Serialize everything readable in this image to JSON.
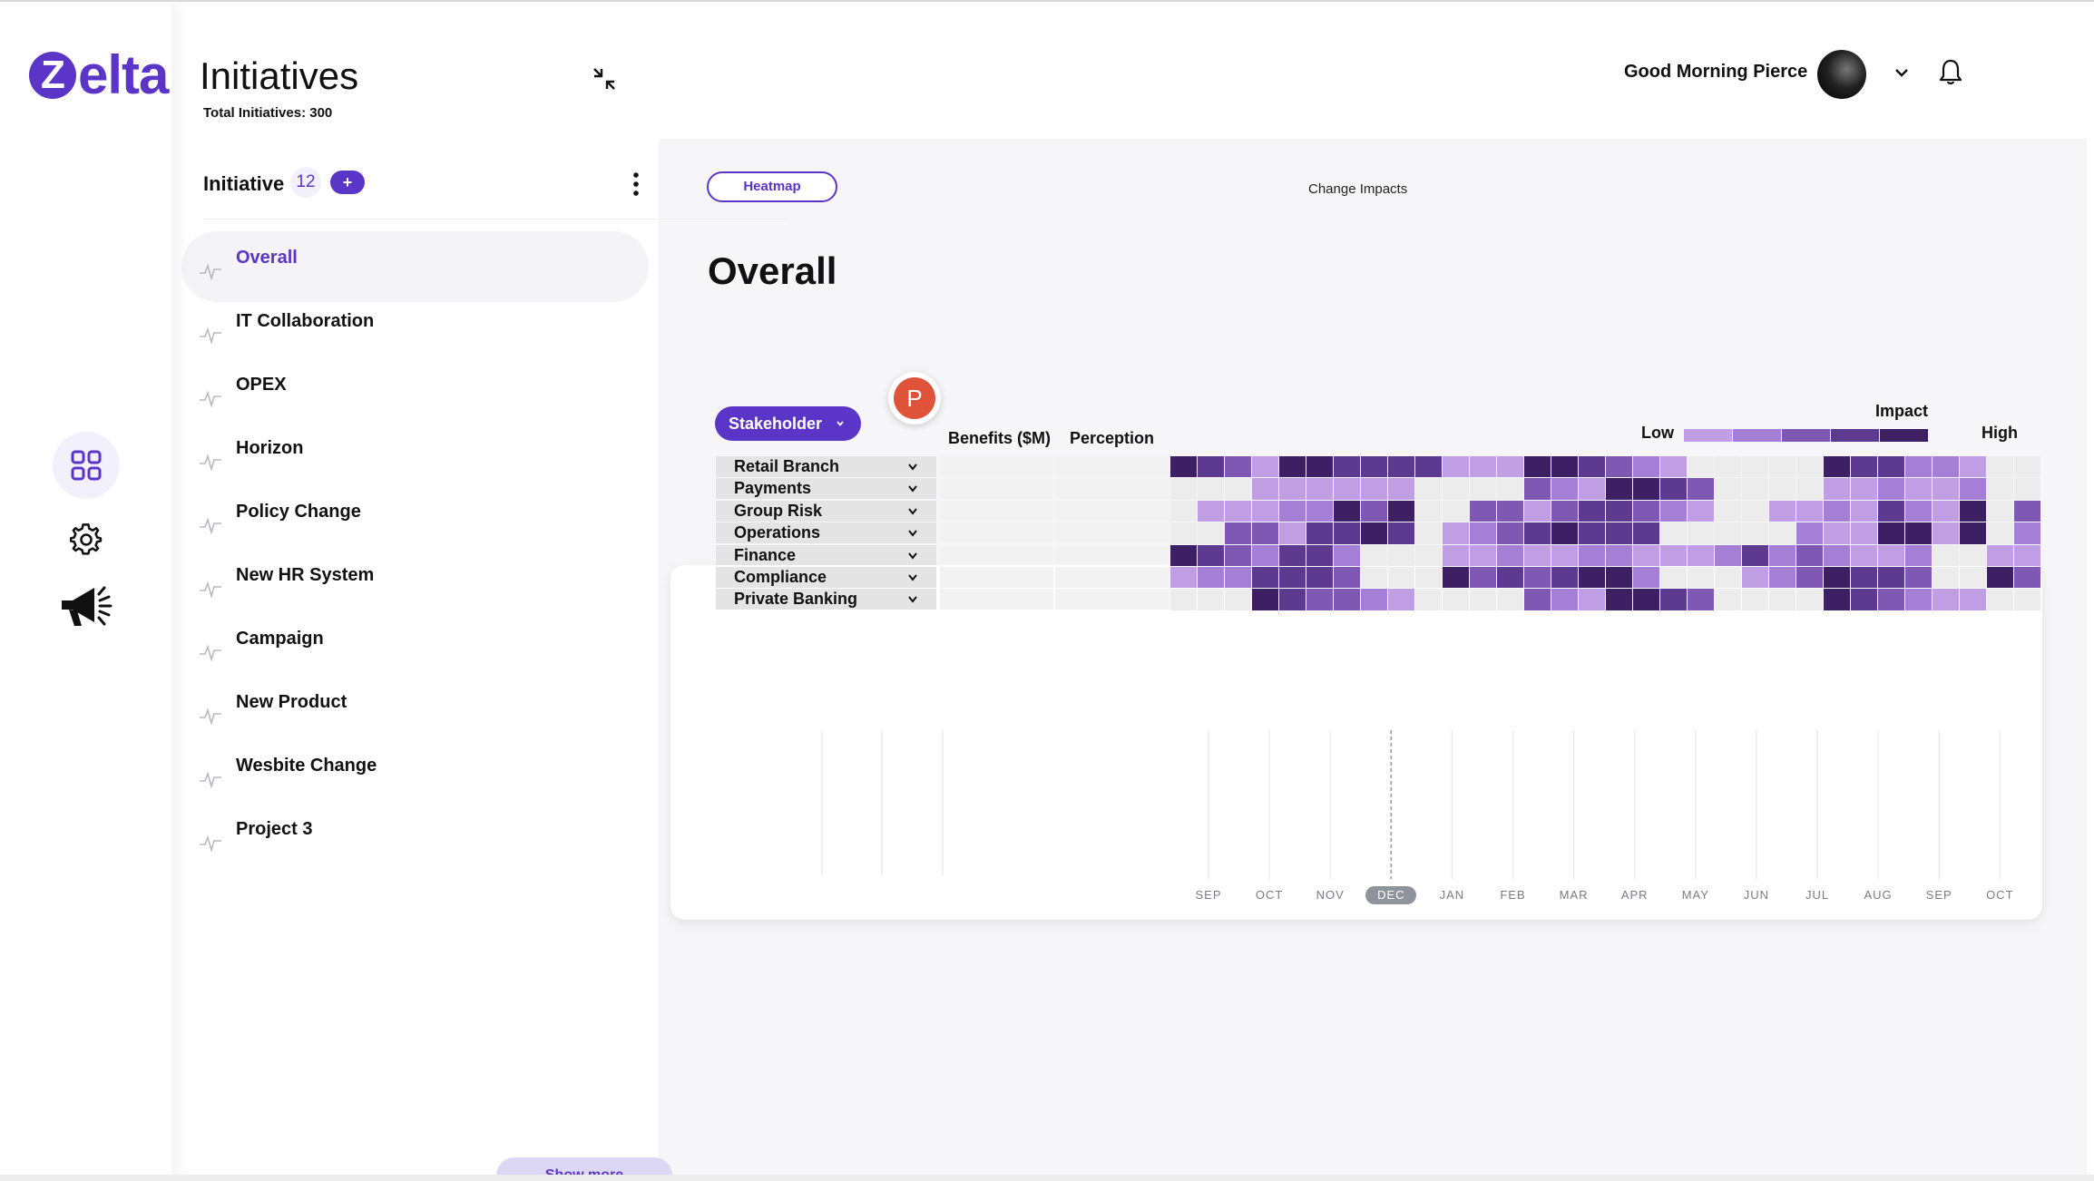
{
  "app": {
    "logo_text": "elta",
    "logo_letter": "Z"
  },
  "user": {
    "greeting": "Good Morning Pierce"
  },
  "panel": {
    "title": "Initiatives",
    "total_label": "Total Initiatives: 300",
    "header_label": "Initiative",
    "header_count": "12",
    "add_label": "+",
    "items": [
      {
        "label": "Overall",
        "selected": true
      },
      {
        "label": "IT Collaboration"
      },
      {
        "label": "OPEX"
      },
      {
        "label": "Horizon"
      },
      {
        "label": "Policy Change"
      },
      {
        "label": "New HR System"
      },
      {
        "label": "Campaign"
      },
      {
        "label": "New Product"
      },
      {
        "label": "Wesbite Change"
      },
      {
        "label": "Project 3"
      }
    ],
    "show_more_label": "Show more"
  },
  "main": {
    "tab_label": "Heatmap",
    "subtitle": "Change Impacts",
    "title": "Overall",
    "stakeholder_label": "Stakeholder",
    "avatar_letter": "P",
    "col_benefits": "Benefits ($M)",
    "col_perception": "Perception",
    "legend": {
      "title": "Impact",
      "low": "Low",
      "high": "High"
    },
    "months": [
      {
        "label": "SEP"
      },
      {
        "label": "OCT"
      },
      {
        "label": "NOV"
      },
      {
        "label": "DEC",
        "current": true
      },
      {
        "label": "JAN"
      },
      {
        "label": "FEB"
      },
      {
        "label": "MAR"
      },
      {
        "label": "APR"
      },
      {
        "label": "MAY"
      },
      {
        "label": "JUN"
      },
      {
        "label": "JUL"
      },
      {
        "label": "AUG"
      },
      {
        "label": "SEP"
      },
      {
        "label": "OCT"
      }
    ]
  },
  "colors": {
    "brand": "#5a35c8",
    "impact_scale": [
      "#ececec",
      "#c09ee4",
      "#a47fd5",
      "#7f58b3",
      "#5c3a8f",
      "#3d1f63"
    ]
  },
  "chart_data": {
    "type": "heatmap",
    "title": "Impact",
    "x_unit": "weekly columns from SEP to OCT",
    "scale": [
      "Low",
      "High"
    ],
    "levels_note": "0 = none, 1 = low ... 5 = high",
    "rows": [
      {
        "name": "Retail Branch",
        "levels": [
          5,
          4,
          3,
          1,
          5,
          5,
          4,
          4,
          4,
          4,
          1,
          1,
          1,
          5,
          5,
          4,
          3,
          2,
          1,
          0,
          0,
          0,
          0,
          0,
          5,
          4,
          4,
          2,
          2,
          1,
          0,
          0
        ]
      },
      {
        "name": "Payments",
        "levels": [
          0,
          0,
          0,
          1,
          1,
          1,
          1,
          1,
          1,
          0,
          0,
          0,
          0,
          3,
          2,
          1,
          5,
          5,
          4,
          3,
          0,
          0,
          0,
          0,
          1,
          1,
          2,
          1,
          1,
          2,
          0,
          0
        ]
      },
      {
        "name": "Group Risk",
        "levels": [
          0,
          1,
          1,
          1,
          2,
          2,
          5,
          3,
          5,
          0,
          0,
          3,
          3,
          1,
          3,
          4,
          4,
          3,
          2,
          1,
          0,
          0,
          1,
          1,
          2,
          1,
          4,
          2,
          1,
          5,
          0,
          3
        ]
      },
      {
        "name": "Operations",
        "levels": [
          0,
          0,
          3,
          3,
          1,
          4,
          4,
          5,
          4,
          0,
          1,
          2,
          3,
          4,
          5,
          4,
          4,
          4,
          0,
          0,
          0,
          0,
          0,
          2,
          1,
          1,
          5,
          5,
          1,
          5,
          0,
          2
        ]
      },
      {
        "name": "Finance",
        "levels": [
          5,
          4,
          3,
          2,
          4,
          4,
          2,
          0,
          0,
          0,
          1,
          1,
          2,
          1,
          1,
          2,
          2,
          1,
          1,
          1,
          2,
          4,
          2,
          3,
          2,
          1,
          1,
          2,
          0,
          0,
          1,
          1
        ]
      },
      {
        "name": "Compliance",
        "levels": [
          1,
          2,
          2,
          4,
          4,
          4,
          3,
          0,
          0,
          0,
          5,
          3,
          4,
          3,
          4,
          5,
          5,
          2,
          0,
          0,
          0,
          1,
          2,
          3,
          5,
          4,
          4,
          3,
          0,
          0,
          5,
          3
        ]
      },
      {
        "name": "Private Banking",
        "levels": [
          0,
          0,
          0,
          5,
          4,
          3,
          3,
          2,
          1,
          0,
          0,
          0,
          0,
          3,
          2,
          1,
          5,
          5,
          4,
          3,
          0,
          0,
          0,
          0,
          5,
          4,
          3,
          2,
          1,
          1,
          0,
          0
        ]
      }
    ]
  }
}
